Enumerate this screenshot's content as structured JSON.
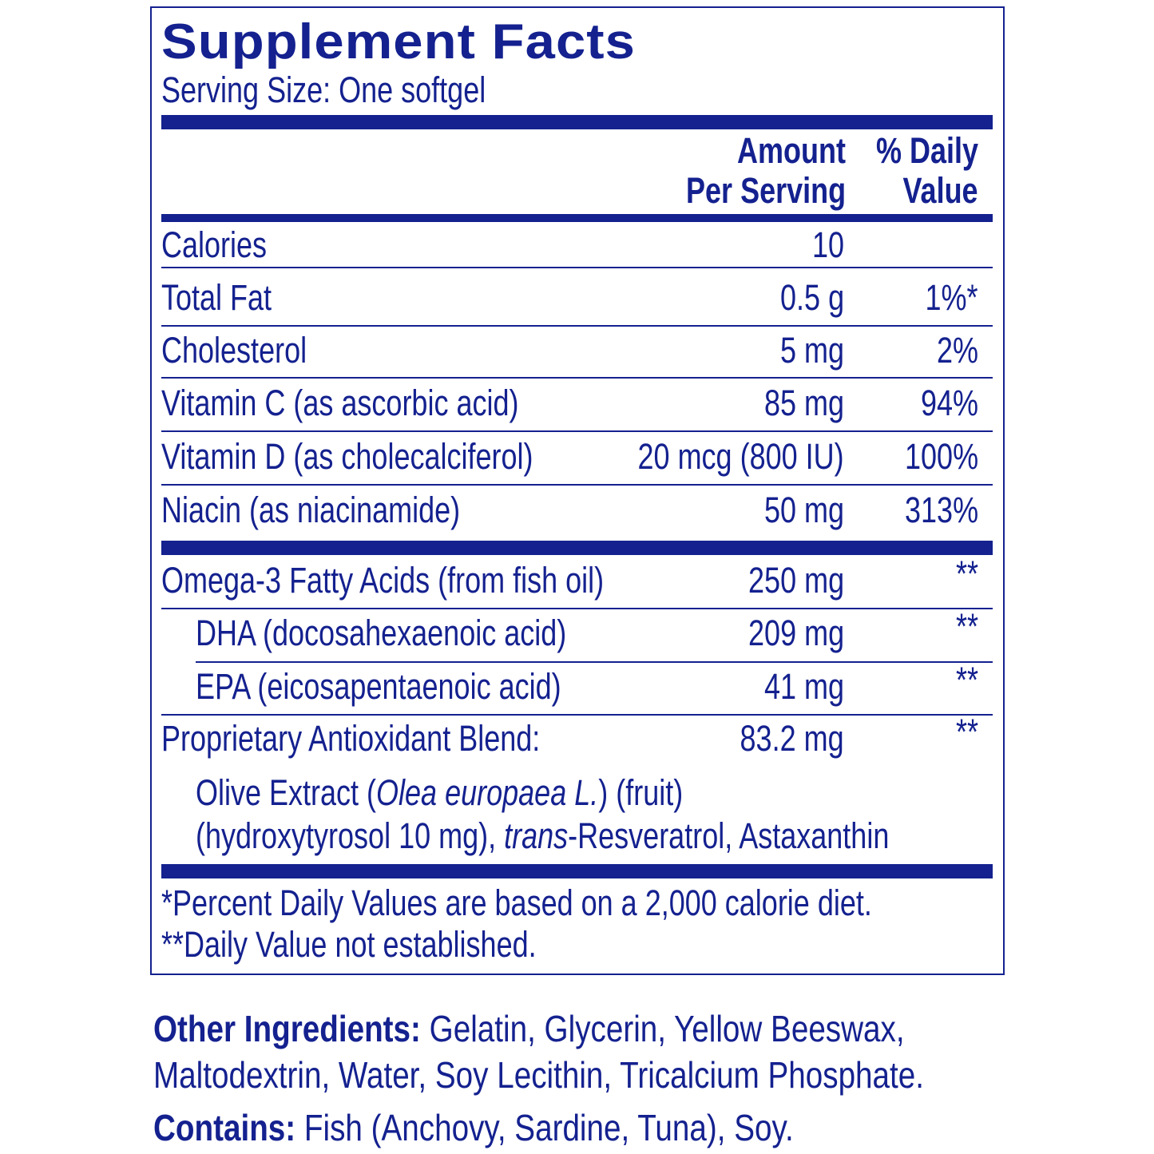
{
  "title": "Supplement Facts",
  "serving_size": "Serving Size: One softgel",
  "header": {
    "amount_1": "Amount",
    "amount_2": "Per Serving",
    "dv_1": "% Daily",
    "dv_2": "Value"
  },
  "rows": [
    {
      "name": "Calories",
      "amount": "10",
      "dv": ""
    },
    {
      "name": "Total Fat",
      "amount": "0.5 g",
      "dv": "1%*"
    },
    {
      "name": "Cholesterol",
      "amount": "5 mg",
      "dv": "2%"
    },
    {
      "name": "Vitamin C (as ascorbic acid)",
      "amount": "85 mg",
      "dv": "94%"
    },
    {
      "name": "Vitamin D (as cholecalciferol)",
      "amount": "20 mcg (800 IU)",
      "dv": "100%"
    },
    {
      "name": "Niacin (as niacinamide)",
      "amount": "50 mg",
      "dv": "313%"
    },
    {
      "name": "Omega-3 Fatty Acids (from fish oil)",
      "amount": "250 mg",
      "dv": "**"
    },
    {
      "name": "DHA (docosahexaenoic acid)",
      "amount": "209 mg",
      "dv": "**"
    },
    {
      "name": "EPA (eicosapentaenoic acid)",
      "amount": "41 mg",
      "dv": "**"
    },
    {
      "name": "Proprietary Antioxidant Blend:",
      "amount": "83.2 mg",
      "dv": "**"
    }
  ],
  "blend": {
    "a": "Olive Extract (",
    "a_i": "Olea europaea L.",
    "a2": ") (fruit)",
    "b": "(hydroxytyrosol 10 mg), ",
    "b_i": "trans",
    "b2": "-Resveratrol, Astaxanthin"
  },
  "footnotes": [
    "*Percent Daily Values are based on a 2,000 calorie diet.",
    "**Daily Value not established."
  ],
  "other": {
    "label": "Other Ingredients:",
    "text1": " Gelatin, Glycerin, Yellow Beeswax,",
    "text2": "Maltodextrin, Water, Soy Lecithin, Tricalcium Phosphate."
  },
  "contains": {
    "label": "Contains:",
    "text": "  Fish (Anchovy, Sardine, Tuna), Soy."
  },
  "colors": {
    "ink": "#14218f"
  }
}
